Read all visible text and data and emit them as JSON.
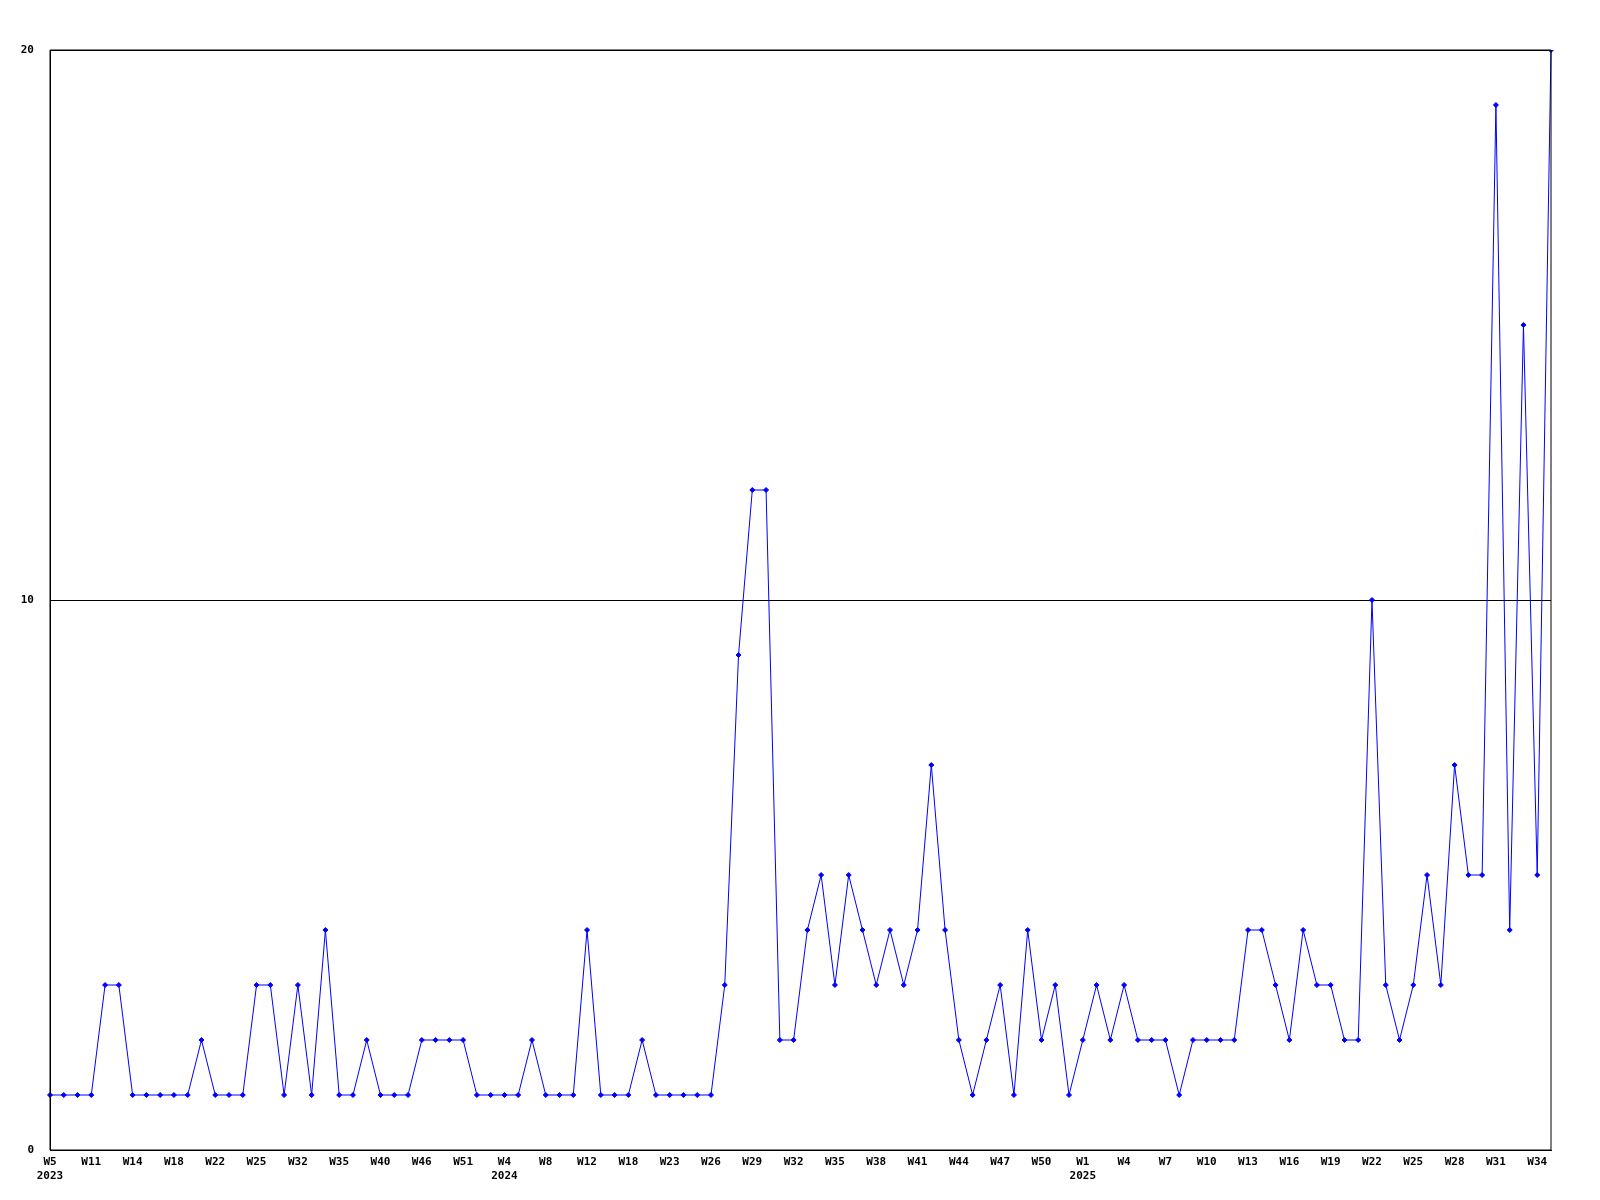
{
  "chart_data": {
    "type": "line",
    "categories": [
      "W5\n2023",
      null,
      null,
      "W11",
      null,
      null,
      "W14",
      null,
      null,
      "W18",
      null,
      null,
      "W22",
      null,
      null,
      "W25",
      null,
      null,
      "W32",
      null,
      null,
      "W35",
      null,
      null,
      "W40",
      null,
      null,
      "W46",
      null,
      null,
      "W51",
      null,
      null,
      "W4\n2024",
      null,
      null,
      "W8",
      null,
      null,
      "W12",
      null,
      null,
      "W18",
      null,
      null,
      "W23",
      null,
      null,
      "W26",
      null,
      null,
      "W29",
      null,
      null,
      "W32",
      null,
      null,
      "W35",
      null,
      null,
      "W38",
      null,
      null,
      "W41",
      null,
      null,
      "W44",
      null,
      null,
      "W47",
      null,
      null,
      "W50",
      null,
      null,
      "W1\n2025",
      null,
      null,
      "W4",
      null,
      null,
      "W7",
      null,
      null,
      "W10",
      null,
      null,
      "W13",
      null,
      null,
      "W16",
      null,
      null,
      "W19",
      null,
      null,
      "W22",
      null,
      null,
      "W25",
      null,
      null,
      "W28",
      null,
      null,
      "W31",
      null,
      null,
      "W34",
      null
    ],
    "series": [
      {
        "color": "#0000ff",
        "values": [
          1,
          1,
          1,
          1,
          3,
          3,
          1,
          1,
          1,
          1,
          1,
          2,
          1,
          1,
          1,
          3,
          3,
          1,
          3,
          1,
          4,
          1,
          1,
          2,
          1,
          1,
          1,
          2,
          2,
          2,
          2,
          1,
          1,
          1,
          1,
          2,
          1,
          1,
          1,
          4,
          1,
          1,
          1,
          2,
          1,
          1,
          1,
          1,
          1,
          3,
          9,
          12,
          12,
          2,
          2,
          4,
          5,
          3,
          5,
          4,
          3,
          4,
          3,
          4,
          7,
          4,
          2,
          1,
          2,
          3,
          1,
          4,
          2,
          3,
          1,
          2,
          3,
          2,
          3,
          2,
          2,
          2,
          1,
          2,
          2,
          2,
          2,
          4,
          4,
          3,
          2,
          4,
          3,
          3,
          2,
          2,
          10,
          3,
          2,
          3,
          5,
          3,
          7,
          5,
          5,
          19,
          4,
          15,
          5,
          20
        ]
      }
    ],
    "ylim": [
      0,
      20
    ],
    "yticks": [
      0,
      10,
      20
    ],
    "grid": "y",
    "legend": false,
    "marker": "diamond",
    "line_style": "solid"
  }
}
